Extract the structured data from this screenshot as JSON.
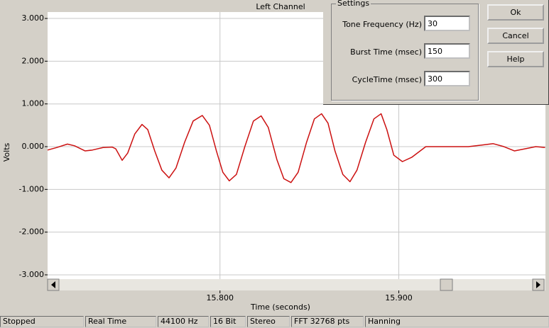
{
  "chart_data": {
    "type": "line",
    "title": "Left Channel",
    "x_label": "Time (seconds)",
    "y_label": "Volts",
    "x": [
      15.7036,
      15.7088,
      15.7147,
      15.7187,
      15.7246,
      15.7286,
      15.7346,
      15.7397,
      15.7417,
      15.7453,
      15.7484,
      15.7524,
      15.7564,
      15.7596,
      15.7635,
      15.7675,
      15.7715,
      15.7754,
      15.7802,
      15.785,
      15.7901,
      15.7941,
      15.798,
      15.8016,
      15.8052,
      15.8092,
      15.8139,
      15.8187,
      15.823,
      15.827,
      15.8318,
      15.8357,
      15.8397,
      15.8437,
      15.8484,
      15.8528,
      15.8568,
      15.8604,
      15.8643,
      15.8687,
      15.8727,
      15.8766,
      15.8814,
      15.8861,
      15.8901,
      15.8933,
      15.8972,
      15.902,
      15.9072,
      15.9151,
      15.923,
      15.931,
      15.9389,
      15.9469,
      15.9528,
      15.9588,
      15.9647,
      15.9707,
      15.9766,
      15.9818
    ],
    "values": [
      -0.08,
      -0.02,
      0.06,
      0.02,
      -0.1,
      -0.08,
      -0.02,
      -0.01,
      -0.05,
      -0.32,
      -0.15,
      0.3,
      0.52,
      0.4,
      -0.1,
      -0.55,
      -0.73,
      -0.5,
      0.1,
      0.6,
      0.73,
      0.5,
      -0.1,
      -0.6,
      -0.8,
      -0.65,
      0.0,
      0.6,
      0.72,
      0.45,
      -0.3,
      -0.75,
      -0.84,
      -0.6,
      0.1,
      0.65,
      0.77,
      0.55,
      -0.1,
      -0.65,
      -0.82,
      -0.55,
      0.1,
      0.65,
      0.77,
      0.4,
      -0.2,
      -0.35,
      -0.25,
      0.0,
      0.0,
      0.0,
      0.0,
      0.04,
      0.07,
      0.0,
      -0.1,
      -0.05,
      0.0,
      -0.02
    ],
    "color": "#cc1111",
    "xlim": [
      15.7036,
      15.982
    ],
    "ylim": [
      -3.1,
      3.15
    ],
    "xticks": [
      {
        "value": 15.8,
        "label": "15.800"
      },
      {
        "value": 15.9,
        "label": "15.900"
      }
    ],
    "yticks": [
      {
        "value": 3,
        "label": "3.000"
      },
      {
        "value": 2,
        "label": "2.000"
      },
      {
        "value": 1,
        "label": "1.000"
      },
      {
        "value": 0,
        "label": "0.000"
      },
      {
        "value": -1,
        "label": "-1.000"
      },
      {
        "value": -2,
        "label": "-2.000"
      },
      {
        "value": -3,
        "label": "-3.000"
      }
    ],
    "grid": true
  },
  "settings": {
    "title": "Settings",
    "fields": [
      {
        "label": "Tone Frequency (Hz)",
        "value": 30
      },
      {
        "label": "Burst Time (msec)",
        "value": 150
      },
      {
        "label": "CycleTime (msec)",
        "value": 300
      }
    ]
  },
  "buttons": [
    "Ok",
    "Cancel",
    "Help"
  ],
  "status_bar": [
    "Stopped",
    "Real Time",
    "44100 Hz",
    "16 Bit",
    "Stereo",
    "FFT 32768 pts",
    "Hanning"
  ]
}
